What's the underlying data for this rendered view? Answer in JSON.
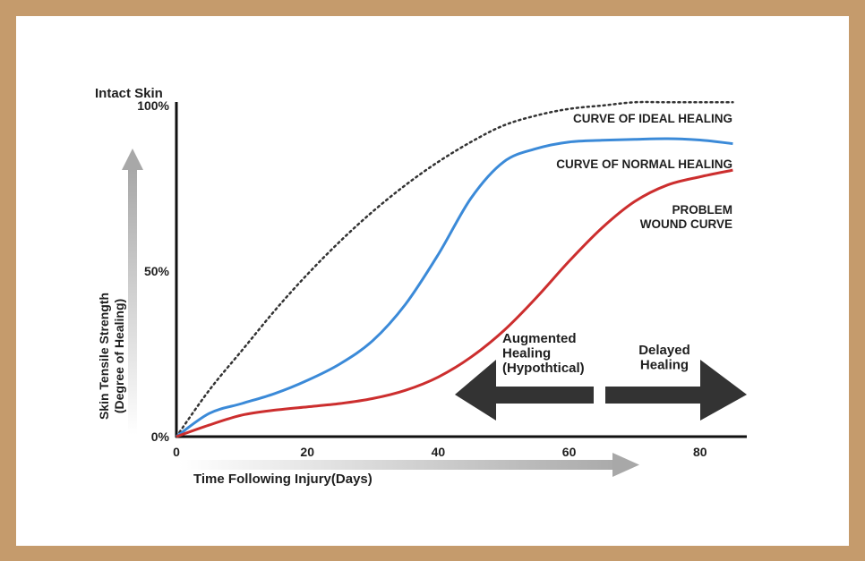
{
  "chart_data": {
    "type": "line",
    "top_label": "Intact Skin",
    "xlabel": "Time Following Injury(Days)",
    "ylabel_line1": "Skin Tensile Strength",
    "ylabel_line2": "(Degree of Healing)",
    "xlim": [
      0,
      87
    ],
    "ylim": [
      0,
      100
    ],
    "xticks": [
      0,
      20,
      40,
      60,
      80
    ],
    "yticks": [
      {
        "value": 0,
        "label": "0%"
      },
      {
        "value": 50,
        "label": "50%"
      },
      {
        "value": 100,
        "label": "100%"
      }
    ],
    "series": [
      {
        "name": "CURVE OF IDEAL HEALING",
        "color": "#333333",
        "style": "dotted",
        "x": [
          0,
          5,
          10,
          15,
          20,
          25,
          30,
          35,
          40,
          45,
          50,
          55,
          60,
          65,
          70,
          75,
          80,
          85
        ],
        "y": [
          0,
          14,
          26,
          38,
          49,
          59,
          68,
          76,
          83,
          89,
          94,
          97,
          99,
          100,
          101,
          101,
          101,
          101
        ]
      },
      {
        "name": "CURVE OF NORMAL HEALING",
        "color": "#3b8ad8",
        "style": "solid",
        "x": [
          0,
          5,
          10,
          15,
          20,
          25,
          30,
          35,
          40,
          45,
          50,
          55,
          60,
          65,
          70,
          75,
          80,
          85
        ],
        "y": [
          0,
          7,
          10,
          13,
          17,
          22,
          29,
          40,
          55,
          72,
          83,
          87,
          89,
          89.5,
          89.8,
          90,
          89.6,
          88.5
        ]
      },
      {
        "name": "PROBLEM WOUND CURVE",
        "color": "#cc2e2e",
        "style": "solid",
        "x": [
          0,
          5,
          10,
          15,
          20,
          25,
          30,
          35,
          40,
          45,
          50,
          55,
          60,
          65,
          70,
          75,
          80,
          85
        ],
        "y": [
          0,
          3.5,
          6.5,
          8,
          9,
          10,
          11.5,
          14,
          18,
          24,
          32,
          42,
          53,
          63,
          71,
          76,
          78.5,
          80.5
        ]
      }
    ],
    "legend_labels": [
      {
        "lines": [
          "CURVE OF IDEAL HEALING"
        ]
      },
      {
        "lines": [
          "CURVE OF NORMAL HEALING"
        ]
      },
      {
        "lines": [
          "PROBLEM",
          "WOUND CURVE"
        ]
      }
    ],
    "annotations": [
      {
        "lines": [
          "Augmented",
          "Healing",
          "(Hypothtical)"
        ],
        "arrow": "left"
      },
      {
        "lines": [
          "Delayed",
          "Healing"
        ],
        "arrow": "right"
      }
    ],
    "grid": false
  }
}
